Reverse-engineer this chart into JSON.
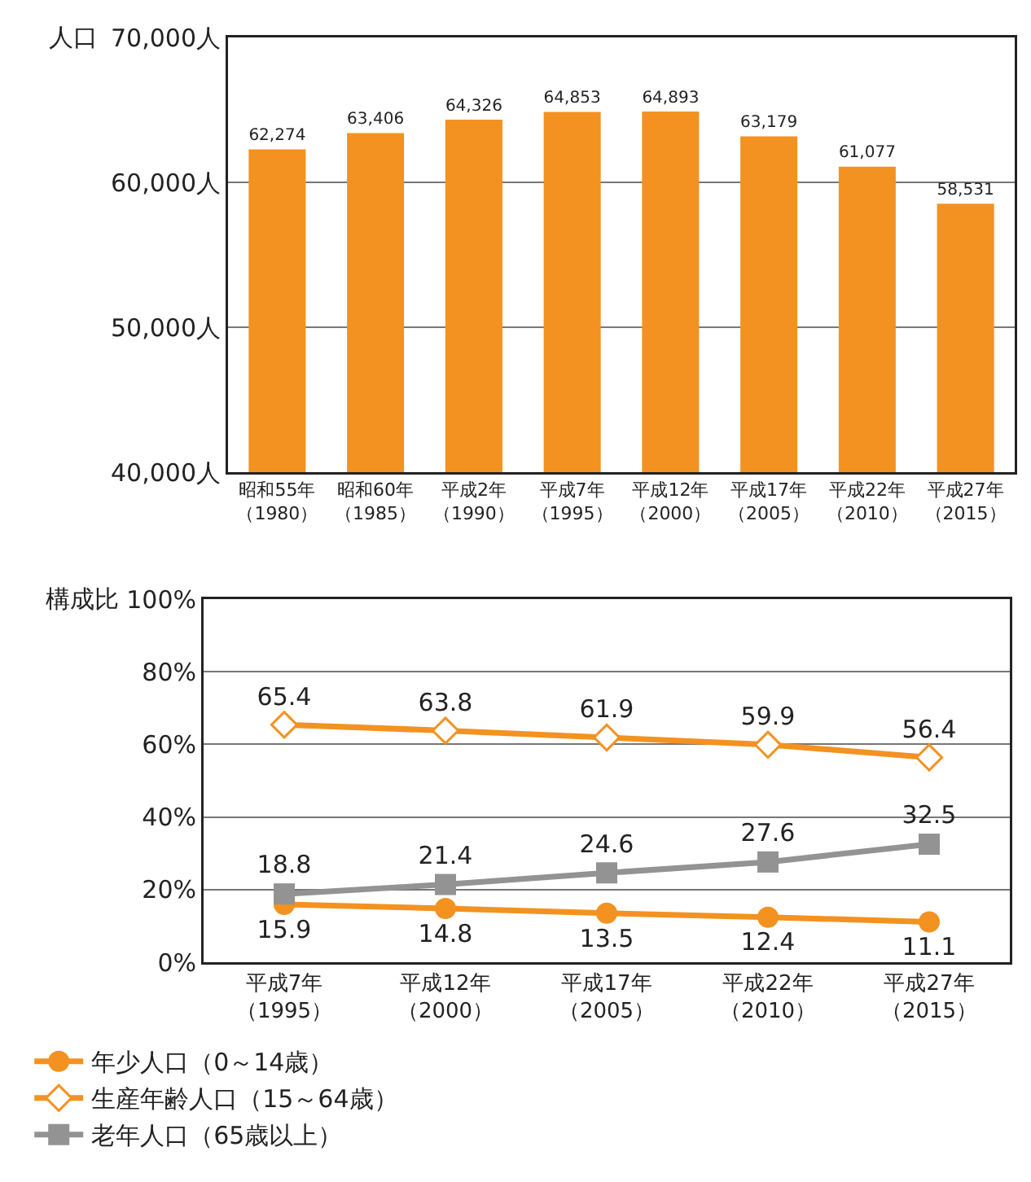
{
  "chart_data": [
    {
      "type": "bar",
      "ylabel": "人口",
      "categories": [
        "昭和55年（1980）",
        "昭和60年（1985）",
        "平成2年（1990）",
        "平成7年（1995）",
        "平成12年（2000）",
        "平成17年（2005）",
        "平成22年（2010）",
        "平成27年（2015）"
      ],
      "values": [
        62274,
        63406,
        64326,
        64853,
        64893,
        63179,
        61077,
        58531
      ],
      "color": "#f39220",
      "value_labels": [
        "62,274",
        "63,406",
        "64,326",
        "64,853",
        "64,893",
        "63,179",
        "61,077",
        "58,531"
      ],
      "ylim": [
        40000,
        70000
      ],
      "yticks": [
        {
          "value": 40000,
          "label": "40,000人"
        },
        {
          "value": 50000,
          "label": "50,000人"
        },
        {
          "value": 60000,
          "label": "60,000人"
        },
        {
          "value": 70000,
          "label": "70,000人"
        }
      ],
      "grid": "y",
      "legend": false
    },
    {
      "type": "line",
      "ylabel": "構成比",
      "categories": [
        "平成7年（1995）",
        "平成12年（2000）",
        "平成17年（2005）",
        "平成22年（2010）",
        "平成27年（2015）"
      ],
      "series": [
        {
          "name": "年少人口（0～14歳）",
          "color": "#f39220",
          "marker": "circle",
          "values": [
            15.9,
            14.8,
            13.5,
            12.4,
            11.1
          ]
        },
        {
          "name": "生産年齢人口（15～64歳）",
          "color": "#f39220",
          "marker": "diamond",
          "values": [
            65.4,
            63.8,
            61.9,
            59.9,
            56.4
          ]
        },
        {
          "name": "老年人口（65歳以上）",
          "color": "#939393",
          "marker": "square",
          "values": [
            18.8,
            21.4,
            24.6,
            27.6,
            32.5
          ]
        }
      ],
      "ylim": [
        0,
        100
      ],
      "yticks": [
        {
          "value": 0,
          "label": "0%"
        },
        {
          "value": 20,
          "label": "20%"
        },
        {
          "value": 40,
          "label": "40%"
        },
        {
          "value": 60,
          "label": "60%"
        },
        {
          "value": 80,
          "label": "80%"
        },
        {
          "value": 100,
          "label": "100%"
        }
      ],
      "grid": "y",
      "data_labels": true,
      "legend": "bottom",
      "line_style": "solid"
    }
  ]
}
